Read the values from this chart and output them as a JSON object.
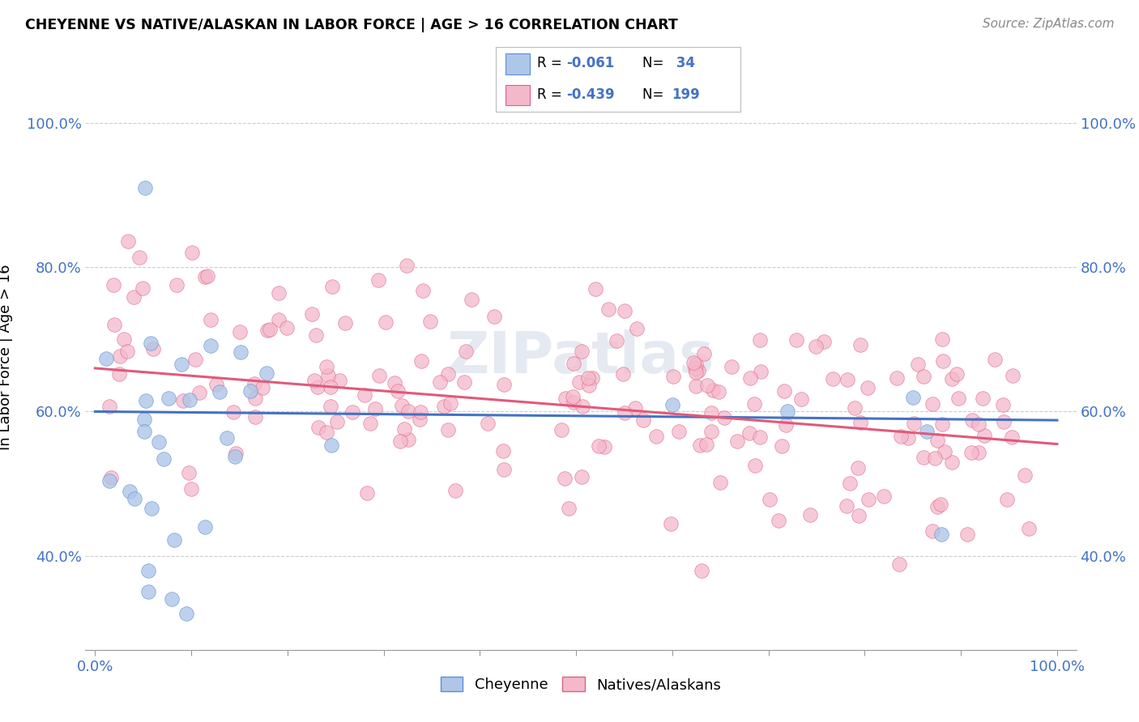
{
  "title": "CHEYENNE VS NATIVE/ALASKAN IN LABOR FORCE | AGE > 16 CORRELATION CHART",
  "source": "Source: ZipAtlas.com",
  "ylabel": "In Labor Force | Age > 16",
  "cheyenne_color": "#aec6e8",
  "cheyenne_edge": "#5b8fd4",
  "native_color": "#f4b8cb",
  "native_edge": "#e0607e",
  "line_cheyenne": "#4472c4",
  "line_native": "#e05a7a",
  "tick_color": "#4472c4",
  "watermark": "ZIPatlas",
  "cheyenne_label": "Cheyenne",
  "native_label": "Natives/Alaskans",
  "cheyenne_R": -0.061,
  "cheyenne_N": 34,
  "native_R": -0.439,
  "native_N": 199,
  "cheyenne_intercept": 0.6,
  "cheyenne_slope": -0.012,
  "native_intercept": 0.66,
  "native_slope": -0.105,
  "ylim_low": 0.27,
  "ylim_high": 1.08,
  "background_color": "#ffffff",
  "grid_color": "#cccccc"
}
